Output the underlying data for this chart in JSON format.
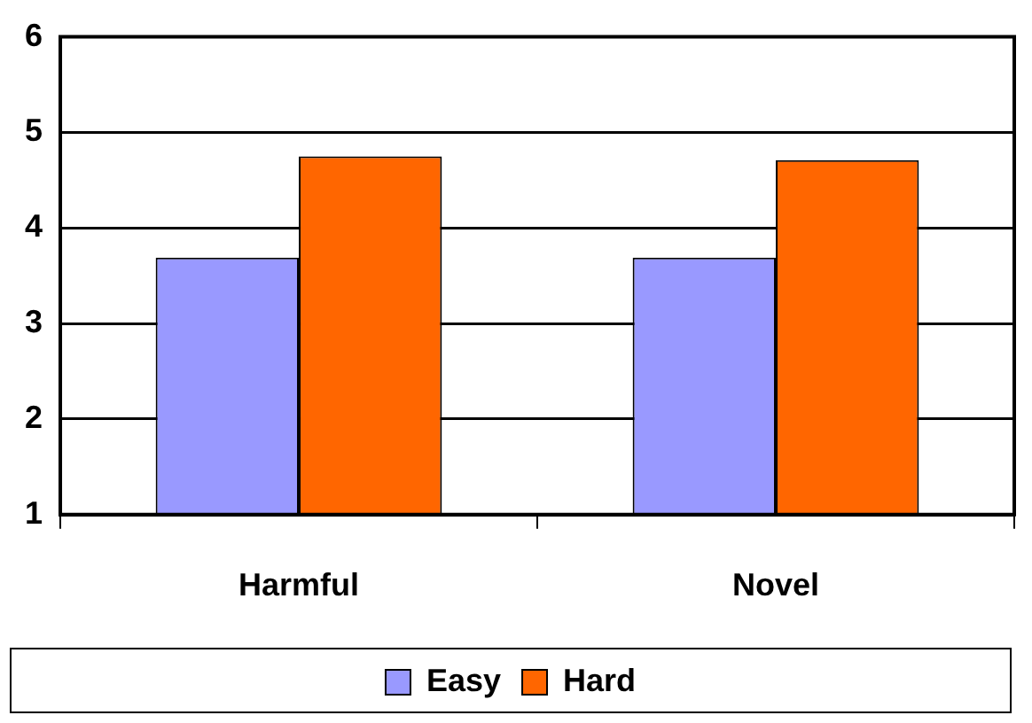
{
  "chart_data": {
    "type": "bar",
    "categories": [
      "Harmful",
      "Novel"
    ],
    "series": [
      {
        "name": "Easy",
        "color": "#9999ff",
        "values": [
          3.69,
          3.69
        ]
      },
      {
        "name": "Hard",
        "color": "#ff6600",
        "values": [
          4.75,
          4.71
        ]
      }
    ],
    "ylim": [
      1,
      6
    ],
    "yticks": [
      1,
      2,
      3,
      4,
      5,
      6
    ],
    "grid": "y",
    "legend": "bottom"
  }
}
